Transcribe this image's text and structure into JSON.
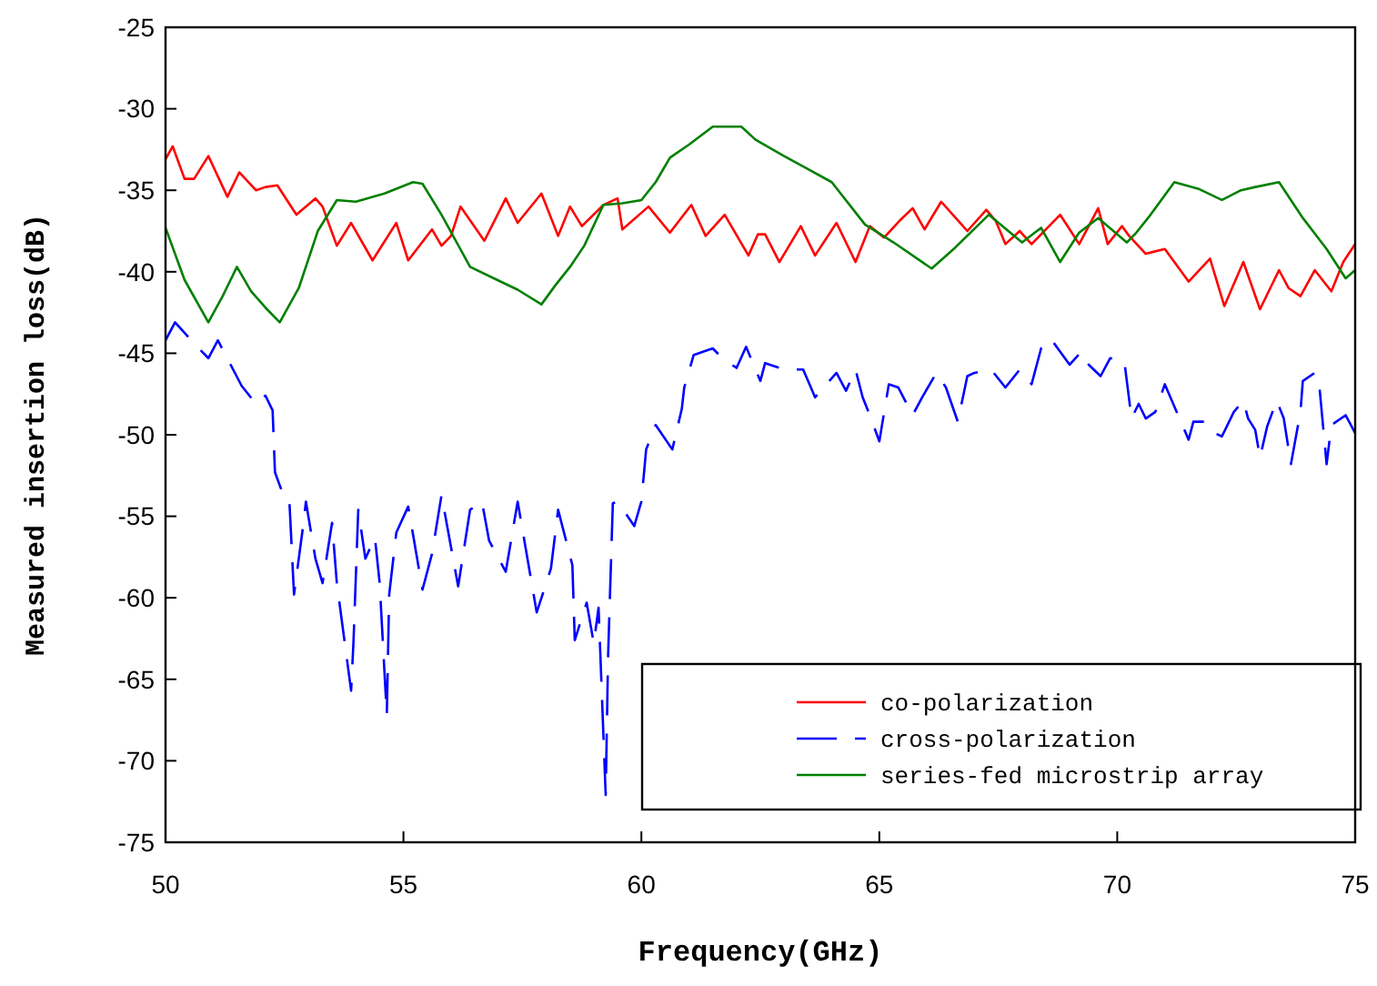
{
  "chart_data": {
    "type": "line",
    "xlabel": "Frequency(GHz)",
    "ylabel": "Measured insertion loss(dB)",
    "xlim": [
      50,
      75
    ],
    "ylim": [
      -75,
      -25
    ],
    "xticks": [
      50,
      55,
      60,
      65,
      70,
      75
    ],
    "yticks": [
      -25,
      -30,
      -35,
      -40,
      -45,
      -50,
      -55,
      -60,
      -65,
      -70,
      -75
    ],
    "grid": false,
    "legend": "bottom right",
    "series": [
      {
        "name": "co-polarization",
        "color": "#ff0000",
        "line_style": "solid",
        "x": [
          50,
          50.15,
          50.4,
          50.6,
          50.9,
          51.3,
          51.55,
          51.9,
          52.1,
          52.35,
          52.75,
          53.15,
          53.3,
          53.6,
          53.9,
          54.35,
          54.85,
          55.1,
          55.6,
          55.8,
          56,
          56.2,
          56.7,
          57.15,
          57.4,
          57.9,
          58.25,
          58.5,
          58.75,
          59.2,
          59.5,
          59.6,
          60.15,
          60.6,
          61.05,
          61.35,
          61.75,
          62.25,
          62.45,
          62.6,
          62.9,
          63.35,
          63.65,
          64.1,
          64.5,
          64.8,
          65.1,
          65.45,
          65.7,
          65.95,
          66.3,
          66.7,
          66.85,
          67.25,
          67.45,
          67.65,
          67.95,
          68.2,
          68.8,
          69.2,
          69.6,
          69.8,
          70.1,
          70.25,
          70.6,
          71,
          71.5,
          71.95,
          72.25,
          72.65,
          73,
          73.4,
          73.6,
          73.85,
          74.15,
          74.5,
          74.75,
          75
        ],
        "values": [
          -33.1,
          -32.3,
          -34.3,
          -34.3,
          -32.9,
          -35.4,
          -33.9,
          -35,
          -34.8,
          -34.7,
          -36.5,
          -35.5,
          -36,
          -38.4,
          -37,
          -39.3,
          -37,
          -39.3,
          -37.4,
          -38.4,
          -37.8,
          -36,
          -38.1,
          -35.5,
          -37,
          -35.2,
          -37.8,
          -36,
          -37.2,
          -35.9,
          -35.5,
          -37.4,
          -36,
          -37.6,
          -35.9,
          -37.8,
          -36.5,
          -39,
          -37.7,
          -37.7,
          -39.4,
          -37.2,
          -39,
          -37,
          -39.4,
          -37.2,
          -37.9,
          -36.8,
          -36.1,
          -37.4,
          -35.7,
          -37,
          -37.5,
          -36.2,
          -36.9,
          -38.3,
          -37.5,
          -38.3,
          -36.5,
          -38.3,
          -36.1,
          -38.3,
          -37.2,
          -37.8,
          -38.9,
          -38.6,
          -40.6,
          -39.2,
          -42.1,
          -39.4,
          -42.3,
          -39.9,
          -41,
          -41.5,
          -39.9,
          -41.2,
          -39.4,
          -38.3
        ]
      },
      {
        "name": "cross-polarization",
        "color": "#0000ff",
        "line_style": "dashed",
        "x": [
          50,
          50.2,
          50.6,
          50.9,
          51.1,
          51.6,
          51.9,
          52.1,
          52.25,
          52.3,
          52.45,
          52.6,
          52.7,
          52.9,
          52.95,
          53.15,
          53.3,
          53.5,
          53.6,
          53.9,
          53.95,
          54.05,
          54.2,
          54.4,
          54.5,
          54.65,
          54.7,
          54.85,
          55.1,
          55.4,
          55.6,
          55.8,
          56.15,
          56.4,
          56.65,
          56.8,
          57.15,
          57.4,
          57.8,
          58.1,
          58.25,
          58.55,
          58.6,
          58.85,
          59,
          59.1,
          59.25,
          59.3,
          59.4,
          59.5,
          59.85,
          60,
          60.1,
          60.3,
          60.65,
          60.85,
          60.9,
          61.1,
          61.5,
          61.7,
          62,
          62.2,
          62.5,
          62.6,
          63,
          63.4,
          63.65,
          64.1,
          64.3,
          64.5,
          64.65,
          64.8,
          65,
          65.2,
          65.4,
          65.7,
          65.9,
          66.2,
          66.4,
          66.65,
          66.85,
          67,
          67.35,
          67.65,
          67.95,
          68.2,
          68.4,
          68.6,
          68.75,
          69,
          69.25,
          69.4,
          69.65,
          69.85,
          70.15,
          70.3,
          70.45,
          70.6,
          70.8,
          71,
          71.25,
          71.5,
          71.6,
          71.85,
          72.05,
          72.2,
          72.45,
          72.65,
          72.75,
          72.9,
          73,
          73.15,
          73.35,
          73.5,
          73.65,
          73.85,
          73.9,
          74.15,
          74.25,
          74.4,
          74.5,
          74.8,
          75
        ],
        "values": [
          -44.2,
          -43.1,
          -44.4,
          -45.3,
          -44.2,
          -47,
          -48.1,
          -47.6,
          -48.5,
          -52.3,
          -53.5,
          -53.9,
          -59.8,
          -55.4,
          -54.1,
          -57.6,
          -59.1,
          -55.4,
          -59.1,
          -65.7,
          -62.7,
          -54.6,
          -57.6,
          -56.3,
          -59.1,
          -67.2,
          -59.8,
          -56,
          -54.4,
          -59.5,
          -57.3,
          -53.7,
          -59.3,
          -54.6,
          -54.1,
          -56.5,
          -58.4,
          -54.1,
          -60.9,
          -58.2,
          -54.6,
          -58,
          -62.6,
          -60.3,
          -62.8,
          -60.6,
          -72.1,
          -63.6,
          -54.2,
          -54.1,
          -55.6,
          -54.1,
          -50.9,
          -49.4,
          -50.9,
          -48.4,
          -47.1,
          -45.1,
          -44.7,
          -45.3,
          -45.9,
          -44.6,
          -46.7,
          -45.6,
          -46,
          -46,
          -47.7,
          -46.2,
          -47.3,
          -46,
          -47.7,
          -48.8,
          -50.4,
          -46.9,
          -47.1,
          -48.8,
          -47.7,
          -46.2,
          -47.1,
          -49.2,
          -46.4,
          -46.2,
          -46,
          -47.1,
          -46,
          -46.9,
          -44.7,
          -44.1,
          -44.7,
          -45.7,
          -44.9,
          -45.7,
          -46.4,
          -45.3,
          -45.5,
          -49,
          -48.1,
          -49,
          -48.6,
          -46.9,
          -48.6,
          -50.3,
          -49.2,
          -49.2,
          -49.9,
          -50.1,
          -48.6,
          -47.9,
          -49,
          -49.7,
          -51.4,
          -49.5,
          -47.9,
          -49,
          -51.8,
          -48.6,
          -46.7,
          -46.2,
          -47.1,
          -51.8,
          -49.4,
          -48.8,
          -49.9
        ]
      },
      {
        "name": "series-fed microstrip array",
        "color": "#008000",
        "line_style": "solid",
        "x": [
          50,
          50.4,
          50.9,
          51.2,
          51.5,
          51.8,
          52.1,
          52.4,
          52.8,
          53.2,
          53.6,
          54,
          54.6,
          55.2,
          55.4,
          55.8,
          56.4,
          56.9,
          57.4,
          57.9,
          58.2,
          58.5,
          58.8,
          59.2,
          59.6,
          60,
          60.3,
          60.6,
          61,
          61.5,
          62.1,
          62.4,
          63,
          63.5,
          64,
          64.7,
          65.3,
          66.1,
          66.6,
          67.3,
          68,
          68.4,
          68.8,
          69.2,
          69.6,
          70.2,
          70.4,
          70.7,
          71.2,
          71.7,
          72.2,
          72.6,
          72.9,
          73.4,
          73.9,
          74.4,
          74.8,
          75
        ],
        "values": [
          -37.3,
          -40.5,
          -43.1,
          -41.5,
          -39.7,
          -41.2,
          -42.2,
          -43.1,
          -41,
          -37.5,
          -35.6,
          -35.7,
          -35.2,
          -34.5,
          -34.6,
          -36.5,
          -39.7,
          -40.4,
          -41.1,
          -42,
          -40.8,
          -39.7,
          -38.4,
          -35.9,
          -35.8,
          -35.6,
          -34.5,
          -33,
          -32.2,
          -31.1,
          -31.1,
          -31.9,
          -32.9,
          -33.7,
          -34.5,
          -37.1,
          -38.2,
          -39.8,
          -38.5,
          -36.5,
          -38.2,
          -37.3,
          -39.4,
          -37.6,
          -36.7,
          -38.2,
          -37.6,
          -36.5,
          -34.5,
          -34.9,
          -35.6,
          -35,
          -34.8,
          -34.5,
          -36.7,
          -38.6,
          -40.4,
          -39.9
        ]
      }
    ]
  }
}
